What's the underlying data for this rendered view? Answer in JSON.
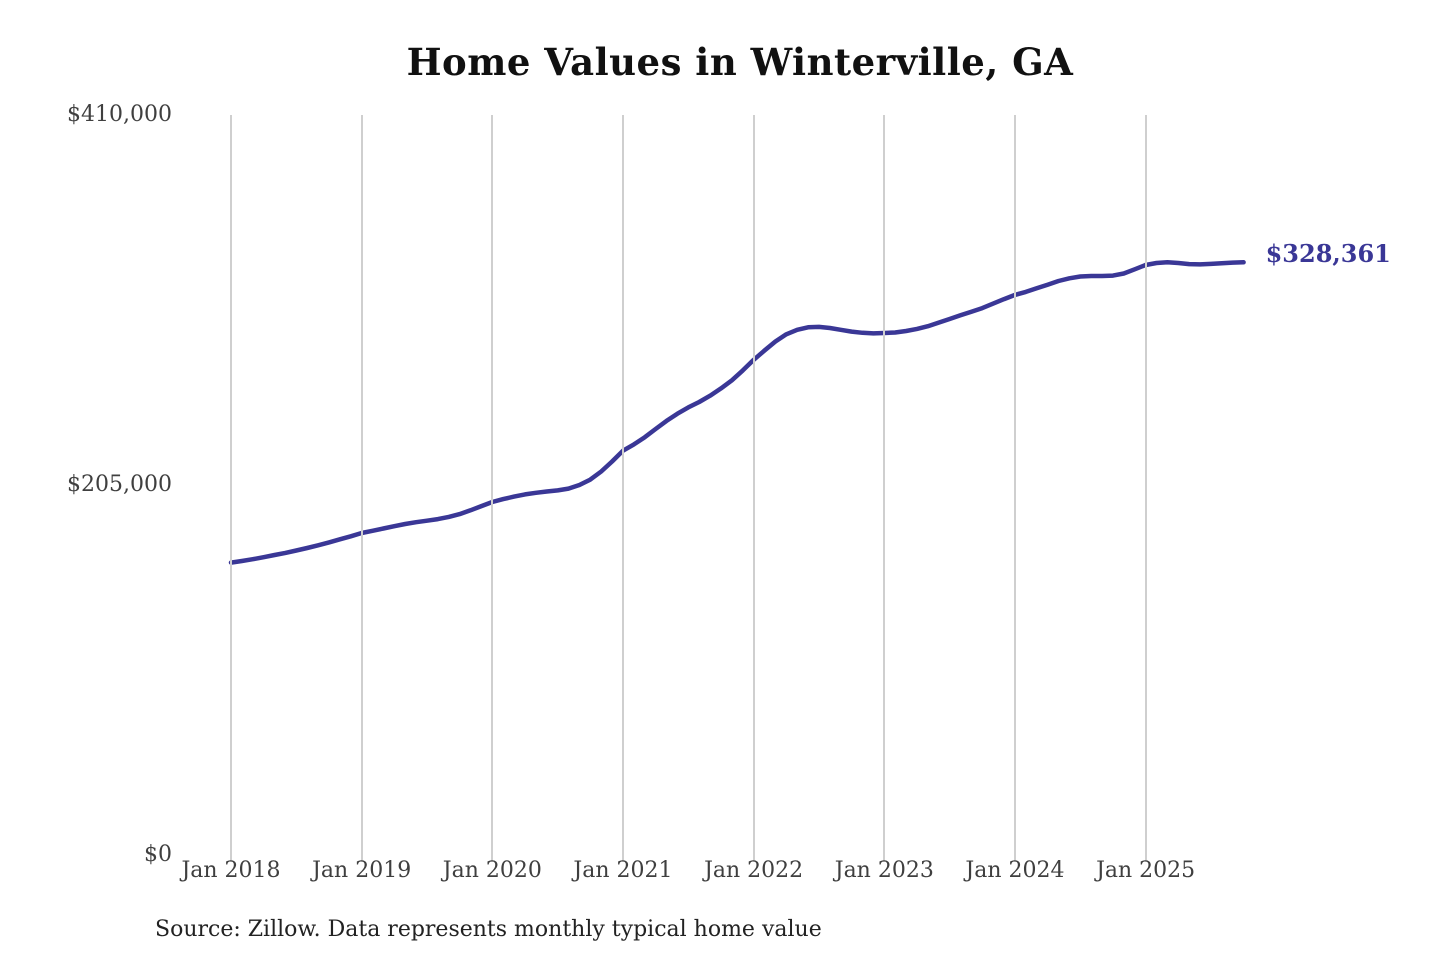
{
  "chart": {
    "title": "Home Values in Winterville, GA",
    "latest_value_label": "$328,361",
    "source_note": "Source: Zillow. Data represents monthly typical home value",
    "colors": {
      "line": "#3a3796",
      "value_label": "#3a3796",
      "grid": "#cfcfcf",
      "axis_text": "#3f3f3f",
      "title_text": "#111111",
      "source_text": "#222222",
      "background": "#ffffff"
    }
  },
  "chart_data": {
    "type": "line",
    "title": "Home Values in Winterville, GA",
    "xlabel": "",
    "ylabel": "",
    "ylim": [
      0,
      410000
    ],
    "grid": "vertical-only",
    "legend": "none",
    "y_tick_labels": [
      "$410,000",
      "$205,000",
      "$0"
    ],
    "y_tick_values": [
      410000,
      205000,
      0
    ],
    "x_tick_labels": [
      "Jan 2018",
      "Jan 2019",
      "Jan 2020",
      "Jan 2021",
      "Jan 2022",
      "Jan 2023",
      "Jan 2024",
      "Jan 2025"
    ],
    "annotations": [
      {
        "text": "$328,361",
        "position": "end-of-line"
      }
    ],
    "series": [
      {
        "name": "Monthly typical home value",
        "months": [
          "2018-01",
          "2018-02",
          "2018-03",
          "2018-04",
          "2018-05",
          "2018-06",
          "2018-07",
          "2018-08",
          "2018-09",
          "2018-10",
          "2018-11",
          "2018-12",
          "2019-01",
          "2019-02",
          "2019-03",
          "2019-04",
          "2019-05",
          "2019-06",
          "2019-07",
          "2019-08",
          "2019-09",
          "2019-10",
          "2019-11",
          "2019-12",
          "2020-01",
          "2020-02",
          "2020-03",
          "2020-04",
          "2020-05",
          "2020-06",
          "2020-07",
          "2020-08",
          "2020-09",
          "2020-10",
          "2020-11",
          "2020-12",
          "2021-01",
          "2021-02",
          "2021-03",
          "2021-04",
          "2021-05",
          "2021-06",
          "2021-07",
          "2021-08",
          "2021-09",
          "2021-10",
          "2021-11",
          "2021-12",
          "2022-01",
          "2022-02",
          "2022-03",
          "2022-04",
          "2022-05",
          "2022-06",
          "2022-07",
          "2022-08",
          "2022-09",
          "2022-10",
          "2022-11",
          "2022-12",
          "2023-01",
          "2023-02",
          "2023-03",
          "2023-04",
          "2023-05",
          "2023-06",
          "2023-07",
          "2023-08",
          "2023-09",
          "2023-10",
          "2023-11",
          "2023-12",
          "2024-01",
          "2024-02",
          "2024-03",
          "2024-04",
          "2024-05",
          "2024-06",
          "2024-07",
          "2024-08",
          "2024-09",
          "2024-10",
          "2024-11",
          "2024-12",
          "2025-01",
          "2025-02",
          "2025-03",
          "2025-04",
          "2025-05",
          "2025-06",
          "2025-07",
          "2025-08",
          "2025-09",
          "2025-10"
        ],
        "values": [
          162000,
          162900,
          163900,
          165000,
          166200,
          167400,
          168700,
          170100,
          171600,
          173200,
          174900,
          176600,
          178400,
          179600,
          180900,
          182200,
          183400,
          184400,
          185200,
          186100,
          187300,
          188900,
          191000,
          193300,
          195600,
          197200,
          198600,
          199800,
          200700,
          201400,
          202000,
          203000,
          205000,
          208000,
          212500,
          218000,
          224000,
          227500,
          231500,
          236000,
          240500,
          244500,
          248000,
          251000,
          254500,
          258500,
          263000,
          268500,
          274300,
          279500,
          284500,
          288500,
          291000,
          292400,
          292600,
          292000,
          291000,
          290000,
          289300,
          289000,
          289200,
          289500,
          290300,
          291500,
          293000,
          295000,
          297000,
          299000,
          301000,
          303000,
          305500,
          308000,
          310300,
          312000,
          314000,
          316000,
          318000,
          319500,
          320500,
          320800,
          320800,
          321000,
          322200,
          324500,
          326900,
          328000,
          328400,
          328000,
          327400,
          327200,
          327500,
          327900,
          328200,
          328361
        ]
      }
    ]
  }
}
